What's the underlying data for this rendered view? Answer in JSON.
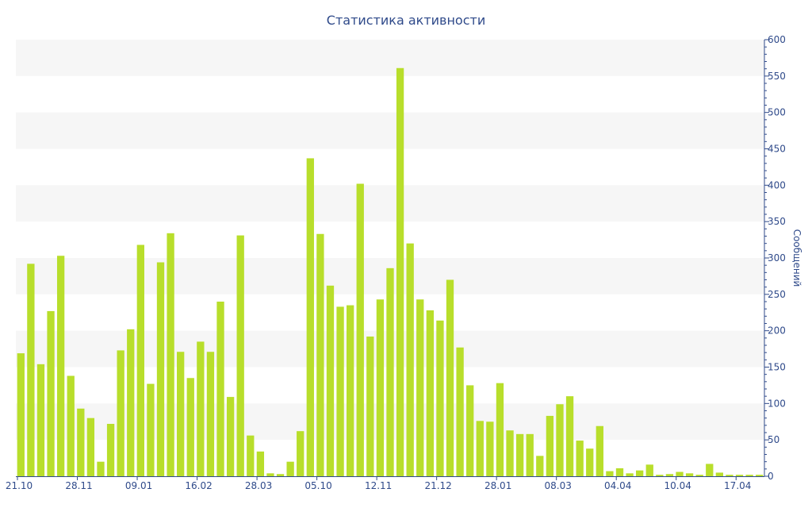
{
  "chart_data": {
    "type": "bar",
    "title": "Статистика активности",
    "ylabel": "Сообщений",
    "xlabel": "",
    "ylim": [
      0,
      600
    ],
    "y_ticks": [
      0,
      50,
      100,
      150,
      200,
      250,
      300,
      350,
      400,
      450,
      500,
      550,
      600
    ],
    "y_axis_side": "right",
    "grid": "alternating horizontal bands",
    "x_tick_labels": [
      {
        "index": 0,
        "label": "21.10"
      },
      {
        "index": 6,
        "label": "28.11"
      },
      {
        "index": 12,
        "label": "09.01"
      },
      {
        "index": 18,
        "label": "16.02"
      },
      {
        "index": 24,
        "label": "28.03"
      },
      {
        "index": 30,
        "label": "05.10"
      },
      {
        "index": 36,
        "label": "12.11"
      },
      {
        "index": 42,
        "label": "21.12"
      },
      {
        "index": 48,
        "label": "28.01"
      },
      {
        "index": 54,
        "label": "08.03"
      },
      {
        "index": 60,
        "label": "04.04"
      },
      {
        "index": 66,
        "label": "10.04"
      },
      {
        "index": 72,
        "label": "17.04"
      }
    ],
    "values": [
      169,
      292,
      154,
      227,
      303,
      138,
      93,
      80,
      20,
      72,
      173,
      202,
      318,
      127,
      294,
      334,
      171,
      135,
      185,
      171,
      240,
      109,
      331,
      56,
      34,
      4,
      3,
      20,
      62,
      437,
      333,
      262,
      233,
      235,
      402,
      192,
      243,
      286,
      561,
      320,
      243,
      228,
      214,
      270,
      177,
      125,
      76,
      75,
      128,
      63,
      58,
      58,
      28,
      83,
      99,
      110,
      49,
      38,
      69,
      7,
      11,
      4,
      8,
      16,
      2,
      3,
      6,
      4,
      2,
      17,
      5,
      2,
      2,
      2,
      2
    ],
    "colors": {
      "bar": "#b8de2b",
      "text": "#2f4a8a",
      "band": "#f6f6f6",
      "axis": "#2f4a8a"
    }
  }
}
